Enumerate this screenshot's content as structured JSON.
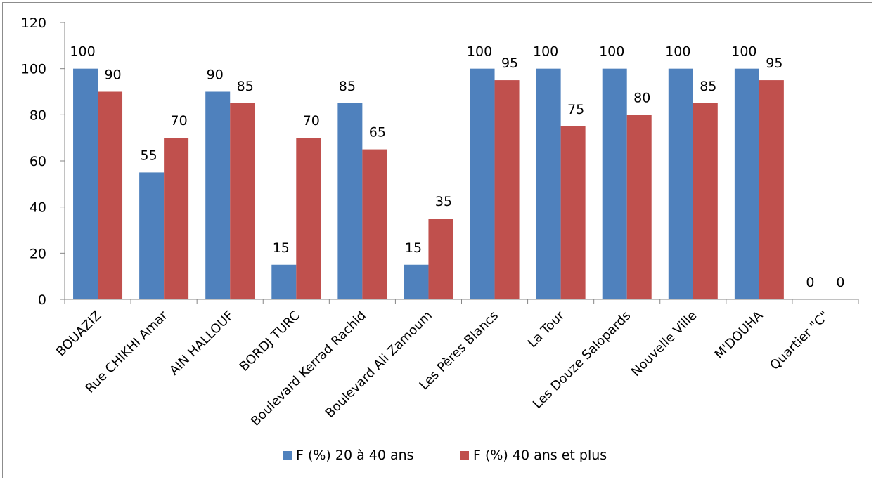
{
  "chart_data": {
    "type": "bar",
    "categories": [
      "BOUAZIZ",
      "Rue CHIKHI Amar",
      "AIN HALLOUF",
      "BORDJ TURC",
      "Boulevard Kerrad Rachid",
      "Boulevard Ali Zamoum",
      "Les Pères Blancs",
      "La Tour",
      "Les Douze Salopards",
      "Nouvelle Ville",
      "M'DOUHA",
      "Quartier \"C\""
    ],
    "series": [
      {
        "name": "F (%) 20 à 40 ans",
        "color": "#4f81bd",
        "values": [
          100,
          55,
          90,
          15,
          85,
          15,
          100,
          100,
          100,
          100,
          100,
          0
        ]
      },
      {
        "name": "F (%) 40 ans et plus",
        "color": "#c0504d",
        "values": [
          90,
          70,
          85,
          70,
          65,
          35,
          95,
          75,
          80,
          85,
          95,
          0
        ]
      }
    ],
    "ylim": [
      0,
      120
    ],
    "yticks": [
      0,
      20,
      40,
      60,
      80,
      100,
      120
    ],
    "grid": false,
    "legend": "bottom",
    "data_labels": true,
    "title": "",
    "xlabel": "",
    "ylabel": ""
  }
}
